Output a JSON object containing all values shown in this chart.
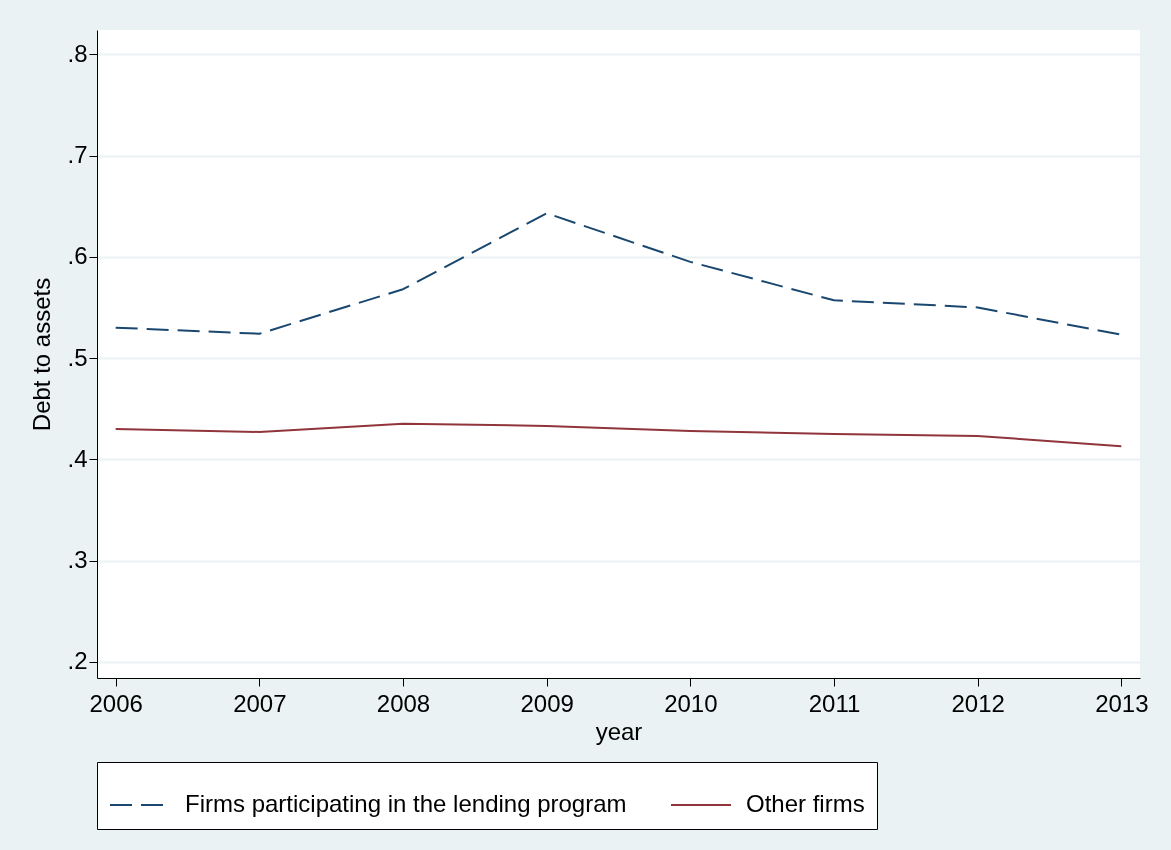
{
  "chart_data": {
    "type": "line",
    "xlabel": "year",
    "ylabel": "Debt to assets",
    "x": [
      2006,
      2007,
      2008,
      2009,
      2010,
      2011,
      2012,
      2013
    ],
    "xlim": [
      2005.87,
      2013.13
    ],
    "xticks": [
      2006,
      2007,
      2008,
      2009,
      2010,
      2011,
      2012,
      2013
    ],
    "ylim": [
      0.184,
      0.824
    ],
    "yticks": [
      {
        "value": 0.2,
        "label": ".2"
      },
      {
        "value": 0.3,
        "label": ".3"
      },
      {
        "value": 0.4,
        "label": ".4"
      },
      {
        "value": 0.5,
        "label": ".5"
      },
      {
        "value": 0.6,
        "label": ".6"
      },
      {
        "value": 0.7,
        "label": ".7"
      },
      {
        "value": 0.8,
        "label": ".8"
      }
    ],
    "grid": "y",
    "legend": "bottom",
    "marker": "none",
    "series": [
      {
        "name": "Firms participating in the lending program",
        "color": "#1a476f",
        "line_style": "dashed",
        "values": [
          0.53,
          0.524,
          0.568,
          0.643,
          0.595,
          0.557,
          0.55,
          0.523
        ]
      },
      {
        "name": "Other firms",
        "color": "#90353b",
        "line_style": "solid",
        "values": [
          0.43,
          0.427,
          0.435,
          0.433,
          0.428,
          0.425,
          0.423,
          0.413
        ]
      }
    ]
  }
}
